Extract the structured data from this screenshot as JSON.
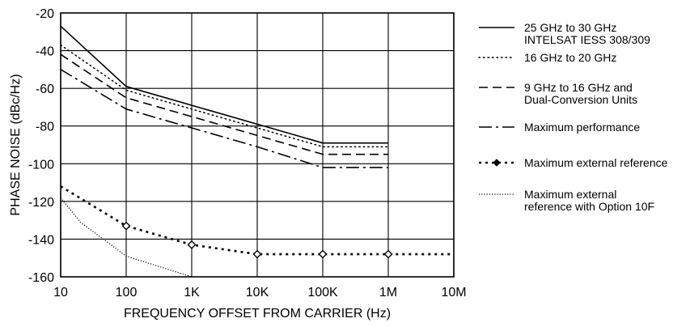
{
  "chart_data": {
    "type": "line",
    "title": "",
    "xlabel": "FREQUENCY OFFSET FROM CARRIER (Hz)",
    "ylabel": "PHASE NOISE (dBc/Hz)",
    "x_scale": "log",
    "xlim": [
      10,
      10000000
    ],
    "ylim": [
      -160,
      -20
    ],
    "x_ticks": [
      {
        "value": 10,
        "label": "10"
      },
      {
        "value": 100,
        "label": "100"
      },
      {
        "value": 1000,
        "label": "1K"
      },
      {
        "value": 10000,
        "label": "10K"
      },
      {
        "value": 100000,
        "label": "100K"
      },
      {
        "value": 1000000,
        "label": "1M"
      },
      {
        "value": 10000000,
        "label": "10M"
      }
    ],
    "y_ticks": [
      {
        "value": -20,
        "label": "-20"
      },
      {
        "value": -40,
        "label": "-40"
      },
      {
        "value": -60,
        "label": "-60"
      },
      {
        "value": -80,
        "label": "-80"
      },
      {
        "value": -100,
        "label": "-100"
      },
      {
        "value": -120,
        "label": "-120"
      },
      {
        "value": -140,
        "label": "-140"
      },
      {
        "value": -160,
        "label": "-160"
      }
    ],
    "grid": true,
    "legend_position": "right",
    "series": [
      {
        "name": "25 GHz to 30 GHz\nINTELSAT IESS 308/309",
        "dash": "solid",
        "marker": "none",
        "x": [
          10,
          100,
          1000,
          10000,
          100000,
          1000000
        ],
        "y": [
          -27,
          -59,
          -69,
          -79,
          -89,
          -89
        ]
      },
      {
        "name": "16 GHz to 20 GHz",
        "dash": "dotted",
        "marker": "none",
        "x": [
          10,
          100,
          1000,
          10000,
          100000,
          1000000
        ],
        "y": [
          -37,
          -61,
          -71,
          -81,
          -91,
          -91
        ]
      },
      {
        "name": "9 GHz to 16 GHz and\nDual-Conversion Units",
        "dash": "dashed",
        "marker": "none",
        "x": [
          10,
          100,
          1000,
          10000,
          100000,
          1000000
        ],
        "y": [
          -42,
          -65,
          -75,
          -85,
          -95,
          -95
        ]
      },
      {
        "name": "Maximum performance",
        "dash": "dashdot",
        "marker": "none",
        "x": [
          10,
          100,
          1000,
          10000,
          100000,
          1000000
        ],
        "y": [
          -50,
          -71,
          -81,
          -91,
          -102,
          -102
        ]
      },
      {
        "name": "Maximum external reference",
        "dash": "heavydot",
        "marker": "diamond",
        "x": [
          10,
          100,
          1000,
          10000,
          100000,
          1000000,
          10000000
        ],
        "y": [
          -112,
          -133,
          -143,
          -148,
          -148,
          -148,
          -148
        ],
        "marker_x": [
          100,
          1000,
          10000,
          100000,
          1000000
        ],
        "marker_y": [
          -133,
          -143,
          -148,
          -148,
          -148
        ]
      },
      {
        "name": "Maximum external\nreference with Option 10F",
        "dash": "finedot",
        "marker": "none",
        "x": [
          10,
          20,
          100,
          1000
        ],
        "y": [
          -118,
          -131,
          -149,
          -160
        ]
      }
    ]
  }
}
